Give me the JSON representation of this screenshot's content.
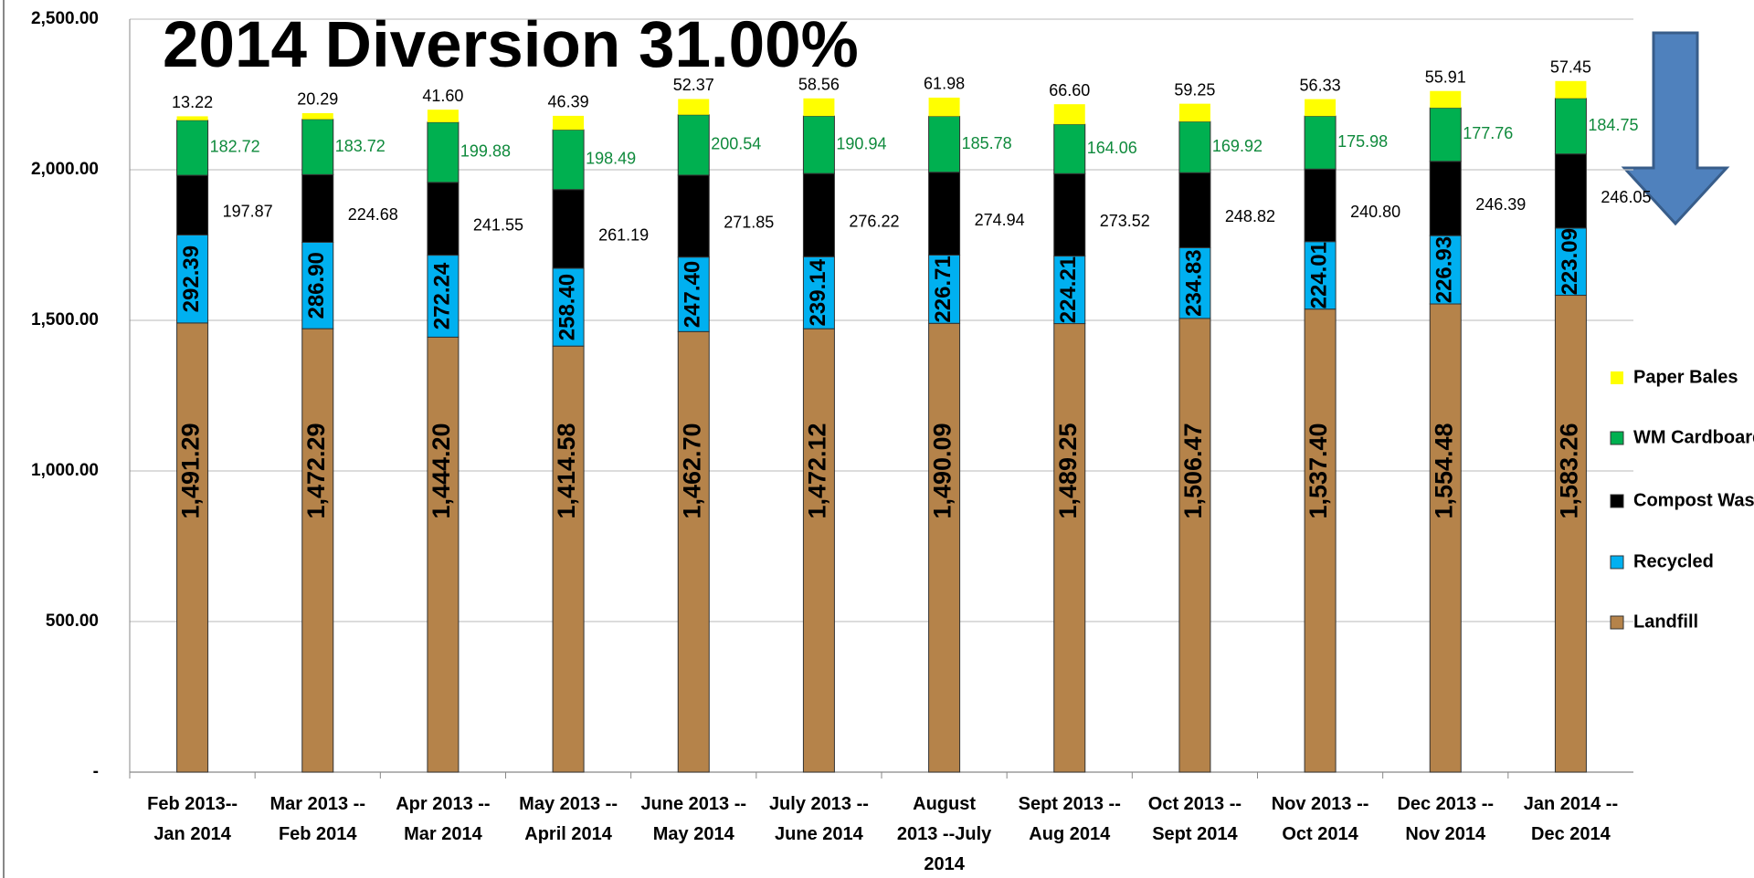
{
  "chart_data": {
    "type": "stacked_bar",
    "title": "2014 Diversion 31.00%",
    "categories": [
      "Feb 2013--\nJan 2014",
      "Mar 2013 --\nFeb 2014",
      "Apr 2013 --\nMar 2014",
      "May 2013 --\nApril 2014",
      "June 2013 --\nMay 2014",
      "July 2013 --\nJune 2014",
      "August\n2013 --July\n2014",
      "Sept 2013 --\nAug 2014",
      "Oct 2013 --\nSept 2014",
      "Nov 2013 --\nOct 2014",
      "Dec 2013 --\nNov 2014",
      "Jan 2014 --\nDec 2014"
    ],
    "series": [
      {
        "name": "Landfill",
        "color": "#b5834a",
        "values": [
          1491.29,
          1472.29,
          1444.2,
          1414.58,
          1462.7,
          1472.12,
          1490.09,
          1489.25,
          1506.47,
          1537.4,
          1554.48,
          1583.26
        ],
        "value_labels": [
          "1,491.29",
          "1,472.29",
          "1,444.20",
          "1,414.58",
          "1,462.70",
          "1,472.12",
          "1,490.09",
          "1,489.25",
          "1,506.47",
          "1,537.40",
          "1,554.48",
          "1,583.26"
        ]
      },
      {
        "name": "Recycled",
        "color": "#00b0f0",
        "values": [
          292.39,
          286.9,
          272.24,
          258.4,
          247.4,
          239.14,
          226.71,
          224.21,
          234.83,
          224.01,
          226.93,
          223.09
        ],
        "value_labels": [
          "292.39",
          "286.90",
          "272.24",
          "258.40",
          "247.40",
          "239.14",
          "226.71",
          "224.21",
          "234.83",
          "224.01",
          "226.93",
          "223.09"
        ]
      },
      {
        "name": "Compost Waste",
        "color": "#000000",
        "values": [
          197.87,
          224.68,
          241.55,
          261.19,
          271.85,
          276.22,
          274.94,
          273.52,
          248.82,
          240.8,
          246.39,
          246.05
        ],
        "value_labels": [
          "197.87",
          "224.68",
          "241.55",
          "261.19",
          "271.85",
          "276.22",
          "274.94",
          "273.52",
          "248.82",
          "240.80",
          "246.39",
          "246.05"
        ]
      },
      {
        "name": "WM Cardboard",
        "color": "#00b050",
        "values": [
          182.72,
          183.72,
          199.88,
          198.49,
          200.54,
          190.94,
          185.78,
          164.06,
          169.92,
          175.98,
          177.76,
          184.75
        ],
        "value_labels": [
          "182.72",
          "183.72",
          "199.88",
          "198.49",
          "200.54",
          "190.94",
          "185.78",
          "164.06",
          "169.92",
          "175.98",
          "177.76",
          "184.75"
        ]
      },
      {
        "name": "Paper Bales",
        "color": "#ffff00",
        "values": [
          13.22,
          20.29,
          41.6,
          46.39,
          52.37,
          58.56,
          61.98,
          66.6,
          59.25,
          56.33,
          55.91,
          57.45
        ],
        "value_labels": [
          "13.22",
          "20.29",
          "41.60",
          "46.39",
          "52.37",
          "58.56",
          "61.98",
          "66.60",
          "59.25",
          "56.33",
          "55.91",
          "57.45"
        ]
      }
    ],
    "ylim": [
      0,
      2500
    ],
    "yticks": [
      {
        "value": 0,
        "label": "-"
      },
      {
        "value": 500,
        "label": "500.00"
      },
      {
        "value": 1000,
        "label": "1,000.00"
      },
      {
        "value": 1500,
        "label": "1,500.00"
      },
      {
        "value": 2000,
        "label": "2,000.00"
      },
      {
        "value": 2500,
        "label": "2,500.00"
      }
    ],
    "grid": true,
    "legend": "right"
  }
}
